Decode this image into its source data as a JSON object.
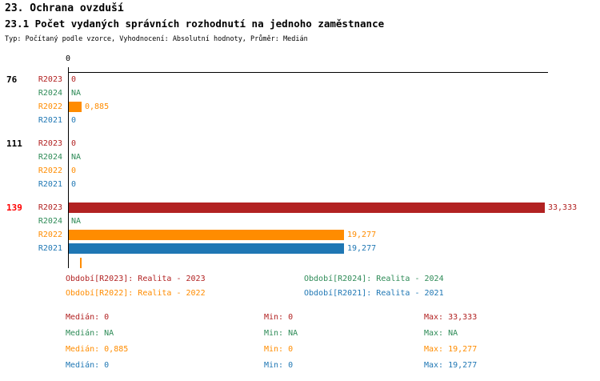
{
  "title": "23. Ochrana ovzduší",
  "subtitle": "23.1 Počet vydaných správních rozhodnutí na jednoho zaměstnance",
  "meta": "Typ: Počítaný podle vzorce, Vyhodnocení: Absolutní hodnoty, Průměr: Medián",
  "series_colors": {
    "R2023": "#B22222",
    "R2024": "#2E8B57",
    "R2022": "#FF8C00",
    "R2021": "#1F77B4"
  },
  "highlight_color": "#FF0000",
  "chart_data": {
    "type": "bar",
    "orientation": "horizontal",
    "title": "23.1 Počet vydaných správních rozhodnutí na jednoho zaměstnance",
    "axis_zero_label": "0",
    "xlim": [
      0,
      33.333
    ],
    "grid": false,
    "legend_position": "bottom",
    "series_order": [
      "R2023",
      "R2024",
      "R2022",
      "R2021"
    ],
    "groups": [
      {
        "label": "76",
        "highlight": false,
        "values": [
          {
            "series": "R2023",
            "value": 0,
            "display": "0"
          },
          {
            "series": "R2024",
            "value": null,
            "display": "NA"
          },
          {
            "series": "R2022",
            "value": 0.885,
            "display": "0,885"
          },
          {
            "series": "R2021",
            "value": 0,
            "display": "0"
          }
        ]
      },
      {
        "label": "111",
        "highlight": false,
        "values": [
          {
            "series": "R2023",
            "value": 0,
            "display": "0"
          },
          {
            "series": "R2024",
            "value": null,
            "display": "NA"
          },
          {
            "series": "R2022",
            "value": 0,
            "display": "0"
          },
          {
            "series": "R2021",
            "value": 0,
            "display": "0"
          }
        ]
      },
      {
        "label": "139",
        "highlight": true,
        "values": [
          {
            "series": "R2023",
            "value": 33.333,
            "display": "33,333"
          },
          {
            "series": "R2024",
            "value": null,
            "display": "NA"
          },
          {
            "series": "R2022",
            "value": 19.277,
            "display": "19,277"
          },
          {
            "series": "R2021",
            "value": 19.277,
            "display": "19,277"
          }
        ]
      }
    ],
    "median_markers": [
      {
        "series": "R2022",
        "value": 0.885
      }
    ]
  },
  "legend": [
    {
      "series": "R2023",
      "text": "Období[R2023]: Realita - 2023"
    },
    {
      "series": "R2024",
      "text": "Období[R2024]: Realita - 2024"
    },
    {
      "series": "R2022",
      "text": "Období[R2022]: Realita - 2022"
    },
    {
      "series": "R2021",
      "text": "Období[R2021]: Realita - 2021"
    }
  ],
  "stats": [
    {
      "series": "R2023",
      "median": "Medián: 0",
      "min": "Min: 0",
      "max": "Max: 33,333"
    },
    {
      "series": "R2024",
      "median": "Medián: NA",
      "min": "Min: NA",
      "max": "Max: NA"
    },
    {
      "series": "R2022",
      "median": "Medián: 0,885",
      "min": "Min: 0",
      "max": "Max: 19,277"
    },
    {
      "series": "R2021",
      "median": "Medián: 0",
      "min": "Min: 0",
      "max": "Max: 19,277"
    }
  ]
}
